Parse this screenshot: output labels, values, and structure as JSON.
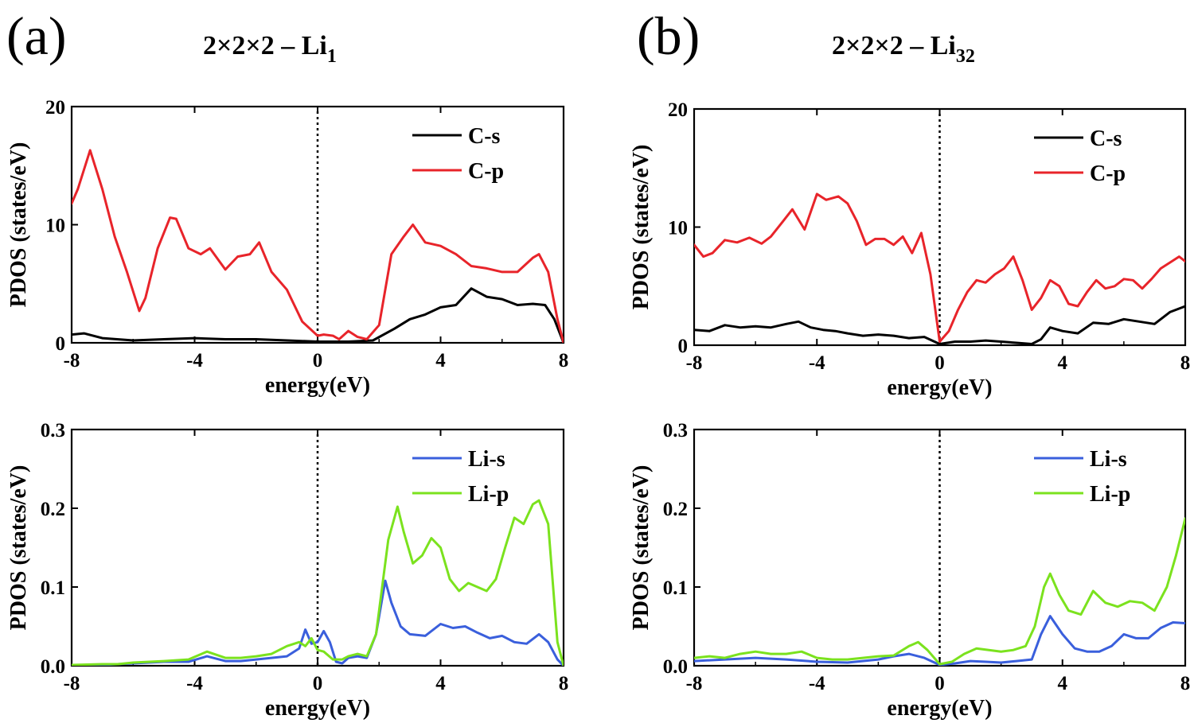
{
  "panels": [
    {
      "label": "(a)",
      "title_main": "2×2×2 – Li",
      "title_sub": "1",
      "plots": [
        {
          "key": "a_top",
          "xlabel": "energy(eV)",
          "ylabel": "PDOS (states/eV)",
          "xticks": [
            "-8",
            "-4",
            "0",
            "4",
            "8"
          ],
          "yticks": [
            "0",
            "10",
            "20"
          ],
          "legend": [
            {
              "name": "C-s",
              "color": "#000000"
            },
            {
              "name": "C-p",
              "color": "#e8242a"
            }
          ]
        },
        {
          "key": "a_bot",
          "xlabel": "energy(eV)",
          "ylabel": "PDOS (states/eV)",
          "xticks": [
            "-8",
            "-4",
            "0",
            "4",
            "8"
          ],
          "yticks": [
            "0.0",
            "0.1",
            "0.2",
            "0.3"
          ],
          "legend": [
            {
              "name": "Li-s",
              "color": "#3a5fdc"
            },
            {
              "name": "Li-p",
              "color": "#7be21e"
            }
          ]
        }
      ]
    },
    {
      "label": "(b)",
      "title_main": "2×2×2 – Li",
      "title_sub": "32",
      "plots": [
        {
          "key": "b_top",
          "xlabel": "energy(eV)",
          "ylabel": "PDOS (states/eV)",
          "xticks": [
            "-8",
            "-4",
            "0",
            "4",
            "8"
          ],
          "yticks": [
            "0",
            "10",
            "20"
          ],
          "legend": [
            {
              "name": "C-s",
              "color": "#000000"
            },
            {
              "name": "C-p",
              "color": "#e8242a"
            }
          ]
        },
        {
          "key": "b_bot",
          "xlabel": "energy(eV)",
          "ylabel": "PDOS (states/eV)",
          "xticks": [
            "-8",
            "-4",
            "0",
            "4",
            "8"
          ],
          "yticks": [
            "0.0",
            "0.1",
            "0.2",
            "0.3"
          ],
          "legend": [
            {
              "name": "Li-s",
              "color": "#3a5fdc"
            },
            {
              "name": "Li-p",
              "color": "#7be21e"
            }
          ]
        }
      ]
    }
  ],
  "chart_data": [
    {
      "type": "line",
      "panel": "(a)",
      "xlabel": "energy(eV)",
      "ylabel": "PDOS (states/eV)",
      "xlim": [
        -8,
        8
      ],
      "ylim": [
        0,
        20
      ],
      "fermi_line_x": 0,
      "legend_position": "top-right",
      "series": [
        {
          "name": "C-s",
          "color": "#000000",
          "x": [
            -8,
            -7.6,
            -7,
            -6,
            -5,
            -4,
            -3,
            -2,
            -1,
            0,
            1,
            1.8,
            2.5,
            3,
            3.5,
            4,
            4.5,
            5,
            5.5,
            6,
            6.5,
            7,
            7.4,
            7.7,
            8
          ],
          "y": [
            0.7,
            0.8,
            0.4,
            0.2,
            0.3,
            0.4,
            0.3,
            0.3,
            0.2,
            0.1,
            0.1,
            0.2,
            1.2,
            2.0,
            2.4,
            3.0,
            3.2,
            4.6,
            3.9,
            3.7,
            3.2,
            3.3,
            3.2,
            2.0,
            0
          ]
        },
        {
          "name": "C-p",
          "color": "#e8242a",
          "x": [
            -8,
            -7.8,
            -7.4,
            -7,
            -6.6,
            -6.2,
            -5.8,
            -5.6,
            -5.2,
            -4.8,
            -4.6,
            -4.2,
            -3.8,
            -3.5,
            -3.0,
            -2.6,
            -2.2,
            -1.9,
            -1.5,
            -1.0,
            -0.5,
            0,
            0.2,
            0.5,
            0.7,
            1.0,
            1.3,
            1.6,
            2.0,
            2.4,
            2.8,
            3.1,
            3.5,
            4.0,
            4.5,
            5.0,
            5.5,
            6.0,
            6.5,
            7.0,
            7.2,
            7.5,
            7.8,
            8
          ],
          "y": [
            11.8,
            13.0,
            16.3,
            13.0,
            9.0,
            6.0,
            2.7,
            3.8,
            8.0,
            10.6,
            10.5,
            8.0,
            7.5,
            8.0,
            6.2,
            7.3,
            7.5,
            8.5,
            6.0,
            4.5,
            1.8,
            0.6,
            0.7,
            0.6,
            0.3,
            1.0,
            0.5,
            0.3,
            1.5,
            7.5,
            9.0,
            10.0,
            8.5,
            8.2,
            7.5,
            6.5,
            6.3,
            6.0,
            6.0,
            7.2,
            7.5,
            6.0,
            2.0,
            0
          ]
        }
      ]
    },
    {
      "type": "line",
      "panel": "(a)",
      "xlabel": "energy(eV)",
      "ylabel": "PDOS (states/eV)",
      "xlim": [
        -8,
        8
      ],
      "ylim": [
        0,
        0.3
      ],
      "fermi_line_x": 0,
      "legend_position": "top-right",
      "series": [
        {
          "name": "Li-s",
          "color": "#3a5fdc",
          "x": [
            -8,
            -7,
            -6,
            -5,
            -4.2,
            -3.6,
            -3,
            -2.5,
            -2,
            -1.5,
            -1,
            -0.6,
            -0.4,
            -0.2,
            0,
            0.2,
            0.4,
            0.6,
            0.8,
            1.0,
            1.3,
            1.6,
            1.9,
            2.2,
            2.4,
            2.7,
            3.0,
            3.5,
            4.0,
            4.4,
            4.8,
            5.2,
            5.6,
            6.0,
            6.4,
            6.8,
            7.2,
            7.5,
            7.8,
            8
          ],
          "y": [
            0.001,
            0.001,
            0.003,
            0.005,
            0.005,
            0.012,
            0.006,
            0.006,
            0.008,
            0.01,
            0.012,
            0.022,
            0.046,
            0.028,
            0.03,
            0.044,
            0.03,
            0.005,
            0.003,
            0.01,
            0.012,
            0.01,
            0.04,
            0.108,
            0.08,
            0.05,
            0.04,
            0.038,
            0.053,
            0.048,
            0.05,
            0.042,
            0.035,
            0.038,
            0.03,
            0.028,
            0.04,
            0.03,
            0.008,
            0
          ]
        },
        {
          "name": "Li-p",
          "color": "#7be21e",
          "x": [
            -8,
            -7,
            -6.5,
            -6,
            -5,
            -4.2,
            -3.6,
            -3,
            -2.5,
            -2,
            -1.5,
            -1,
            -0.6,
            -0.4,
            -0.2,
            0,
            0.2,
            0.5,
            0.8,
            1.0,
            1.3,
            1.6,
            1.9,
            2.1,
            2.3,
            2.6,
            2.8,
            3.1,
            3.4,
            3.7,
            4.0,
            4.3,
            4.6,
            4.9,
            5.2,
            5.5,
            5.8,
            6.1,
            6.4,
            6.7,
            7.0,
            7.2,
            7.5,
            7.8,
            8
          ],
          "y": [
            0.001,
            0.002,
            0.002,
            0.004,
            0.006,
            0.008,
            0.018,
            0.01,
            0.01,
            0.012,
            0.015,
            0.025,
            0.03,
            0.025,
            0.035,
            0.02,
            0.018,
            0.008,
            0.008,
            0.012,
            0.015,
            0.012,
            0.04,
            0.1,
            0.16,
            0.202,
            0.17,
            0.13,
            0.14,
            0.162,
            0.15,
            0.11,
            0.095,
            0.105,
            0.1,
            0.095,
            0.11,
            0.15,
            0.188,
            0.18,
            0.205,
            0.21,
            0.18,
            0.03,
            0
          ]
        }
      ]
    },
    {
      "type": "line",
      "panel": "(b)",
      "xlabel": "energy(eV)",
      "ylabel": "PDOS (states/eV)",
      "xlim": [
        -8,
        8
      ],
      "ylim": [
        0,
        20
      ],
      "fermi_line_x": 0,
      "legend_position": "top-right",
      "series": [
        {
          "name": "C-s",
          "color": "#000000",
          "x": [
            -8,
            -7.5,
            -7,
            -6.5,
            -6,
            -5.5,
            -5,
            -4.6,
            -4.2,
            -3.8,
            -3.4,
            -3,
            -2.5,
            -2,
            -1.5,
            -1,
            -0.5,
            0,
            0.5,
            1,
            1.5,
            2,
            2.5,
            3,
            3.3,
            3.6,
            4,
            4.5,
            5,
            5.5,
            6,
            6.5,
            7,
            7.5,
            8
          ],
          "y": [
            1.3,
            1.2,
            1.7,
            1.5,
            1.6,
            1.5,
            1.8,
            2.0,
            1.5,
            1.3,
            1.2,
            1.0,
            0.8,
            0.9,
            0.8,
            0.6,
            0.7,
            0.1,
            0.3,
            0.3,
            0.4,
            0.3,
            0.2,
            0.1,
            0.5,
            1.5,
            1.2,
            1.0,
            1.9,
            1.8,
            2.2,
            2.0,
            1.8,
            2.8,
            3.3
          ]
        },
        {
          "name": "C-p",
          "color": "#e8242a",
          "x": [
            -8,
            -7.7,
            -7.4,
            -7,
            -6.6,
            -6.2,
            -5.8,
            -5.5,
            -5.1,
            -4.8,
            -4.4,
            -4.0,
            -3.7,
            -3.3,
            -3.0,
            -2.7,
            -2.4,
            -2.1,
            -1.8,
            -1.5,
            -1.2,
            -0.9,
            -0.6,
            -0.3,
            0,
            0.3,
            0.6,
            0.9,
            1.2,
            1.5,
            1.8,
            2.1,
            2.4,
            2.7,
            3.0,
            3.3,
            3.6,
            3.9,
            4.2,
            4.5,
            4.8,
            5.1,
            5.4,
            5.7,
            6.0,
            6.3,
            6.6,
            6.9,
            7.2,
            7.5,
            7.8,
            8
          ],
          "y": [
            8.5,
            7.5,
            7.8,
            8.9,
            8.7,
            9.1,
            8.6,
            9.2,
            10.5,
            11.5,
            9.8,
            12.8,
            12.3,
            12.6,
            12.0,
            10.5,
            8.5,
            9.0,
            9.0,
            8.5,
            9.2,
            7.8,
            9.5,
            6.0,
            0.3,
            1.2,
            3.0,
            4.5,
            5.5,
            5.3,
            6.0,
            6.5,
            7.5,
            5.5,
            3.0,
            4.0,
            5.5,
            5.0,
            3.5,
            3.3,
            4.5,
            5.5,
            4.8,
            5.0,
            5.6,
            5.5,
            4.8,
            5.6,
            6.5,
            7.0,
            7.5,
            7.1
          ]
        }
      ]
    },
    {
      "type": "line",
      "panel": "(b)",
      "xlabel": "energy(eV)",
      "ylabel": "PDOS (states/eV)",
      "xlim": [
        -8,
        8
      ],
      "ylim": [
        0,
        0.3
      ],
      "fermi_line_x": 0,
      "legend_position": "top-right",
      "series": [
        {
          "name": "Li-s",
          "color": "#3a5fdc",
          "x": [
            -8,
            -7,
            -6,
            -5,
            -4,
            -3,
            -2,
            -1.5,
            -1,
            -0.5,
            0,
            0.5,
            1,
            1.5,
            2,
            2.5,
            3,
            3.3,
            3.6,
            4,
            4.4,
            4.8,
            5.2,
            5.6,
            6,
            6.4,
            6.8,
            7.2,
            7.6,
            8
          ],
          "y": [
            0.006,
            0.008,
            0.01,
            0.008,
            0.005,
            0.004,
            0.008,
            0.012,
            0.015,
            0.01,
            0.001,
            0.003,
            0.006,
            0.005,
            0.004,
            0.006,
            0.008,
            0.04,
            0.063,
            0.04,
            0.022,
            0.018,
            0.018,
            0.025,
            0.04,
            0.035,
            0.035,
            0.048,
            0.055,
            0.054
          ]
        },
        {
          "name": "Li-p",
          "color": "#7be21e",
          "x": [
            -8,
            -7.5,
            -7,
            -6.5,
            -6,
            -5.5,
            -5,
            -4.5,
            -4,
            -3.5,
            -3,
            -2.5,
            -2,
            -1.5,
            -1,
            -0.7,
            -0.4,
            0,
            0.4,
            0.8,
            1.2,
            1.6,
            2,
            2.4,
            2.8,
            3.1,
            3.4,
            3.6,
            3.9,
            4.2,
            4.6,
            5.0,
            5.4,
            5.8,
            6.2,
            6.6,
            7.0,
            7.4,
            7.7,
            8
          ],
          "y": [
            0.01,
            0.012,
            0.01,
            0.015,
            0.018,
            0.015,
            0.015,
            0.018,
            0.01,
            0.008,
            0.008,
            0.01,
            0.012,
            0.013,
            0.025,
            0.03,
            0.02,
            0.002,
            0.005,
            0.015,
            0.022,
            0.02,
            0.018,
            0.02,
            0.025,
            0.05,
            0.1,
            0.117,
            0.09,
            0.07,
            0.065,
            0.095,
            0.08,
            0.075,
            0.082,
            0.08,
            0.07,
            0.1,
            0.14,
            0.187
          ]
        }
      ]
    }
  ]
}
